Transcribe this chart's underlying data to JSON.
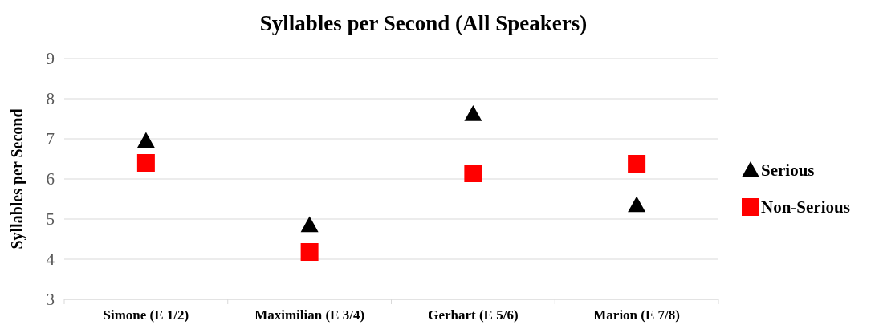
{
  "chart_data": {
    "type": "scatter",
    "title": "Syllables per Second (All Speakers)",
    "ylabel": "Syllables per Second",
    "categories": [
      "Simone (E 1/2)",
      "Maximilian (E 3/4)",
      "Gerhart (E 5/6)",
      "Marion (E 7/8)"
    ],
    "series": [
      {
        "name": "Serious",
        "color": "#000000",
        "marker": "triangle",
        "values": [
          6.95,
          4.85,
          7.62,
          5.35
        ]
      },
      {
        "name": "Non-Serious",
        "color": "#ff0000",
        "marker": "square",
        "values": [
          6.4,
          4.18,
          6.14,
          6.38
        ]
      }
    ],
    "ylim": [
      3,
      9
    ],
    "yticks": [
      3,
      4,
      5,
      6,
      7,
      8,
      9
    ],
    "grid": "y",
    "legend": "right"
  }
}
